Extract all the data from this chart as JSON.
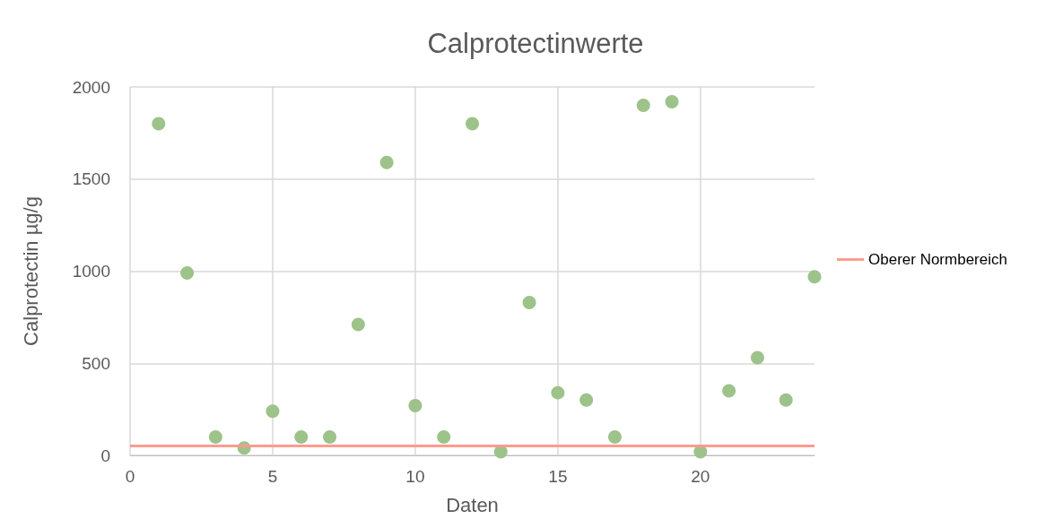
{
  "chart_data": {
    "type": "scatter",
    "title": "Calprotectinwerte",
    "xlabel": "Daten",
    "ylabel": "Calprotectin µg/g",
    "x": [
      1,
      2,
      3,
      4,
      5,
      6,
      7,
      8,
      9,
      10,
      11,
      12,
      13,
      14,
      15,
      16,
      17,
      18,
      19,
      20,
      21,
      22,
      23,
      24
    ],
    "values": [
      1800,
      990,
      100,
      40,
      240,
      100,
      100,
      710,
      1590,
      270,
      100,
      1800,
      20,
      830,
      340,
      300,
      100,
      1900,
      1920,
      20,
      350,
      530,
      300,
      970
    ],
    "color": "#9dc38a",
    "marker": "circle",
    "xlim": [
      0,
      24
    ],
    "xticks": [
      0,
      5,
      10,
      15,
      20
    ],
    "ylim": [
      0,
      2000
    ],
    "yticks": [
      0,
      500,
      1000,
      1500,
      2000
    ],
    "grid": true,
    "legend": "right",
    "ref_lines": [
      {
        "axis": "y",
        "value": 50,
        "label": "Oberer Normbereich",
        "color": "#ff9b8f",
        "line_style": "solid"
      }
    ]
  }
}
